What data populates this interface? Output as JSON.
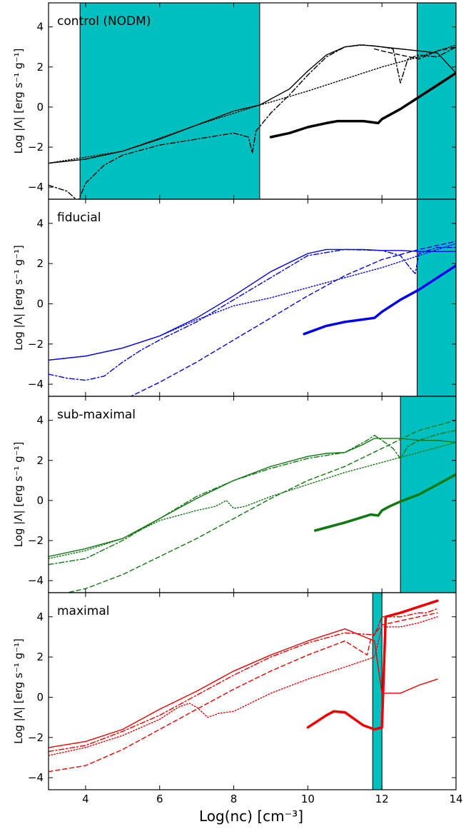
{
  "figure": {
    "xlabel": "Log(nᴄ) [cm⁻³]",
    "ylabel": "Log |Λ| [erg s⁻¹ g⁻¹]",
    "xticks": [
      "4",
      "6",
      "8",
      "10",
      "12",
      "14"
    ],
    "yticks": [
      "−4",
      "−2",
      "0",
      "2",
      "4"
    ]
  },
  "chart_data": [
    {
      "type": "line",
      "title": "control (NODM)",
      "color": "#000000",
      "xlim": [
        3,
        14
      ],
      "ylim": [
        -4.6,
        5.2
      ],
      "shaded_x_ranges": [
        [
          3.85,
          8.7
        ],
        [
          12.95,
          14
        ]
      ],
      "series": [
        {
          "style": "solid",
          "x": [
            3,
            4,
            5,
            6,
            7,
            8,
            8.7,
            9.5,
            10,
            10.5,
            11,
            11.4,
            11.8,
            12,
            12.5,
            13,
            13.5,
            14
          ],
          "y": [
            -2.8,
            -2.6,
            -2.2,
            -1.6,
            -0.9,
            -0.2,
            0.1,
            0.9,
            1.8,
            2.6,
            3.0,
            3.1,
            3.05,
            3.0,
            2.9,
            2.8,
            2.7,
            1.7
          ]
        },
        {
          "style": "dotted",
          "x": [
            3,
            5,
            7,
            8.7,
            9,
            10,
            11,
            12,
            13,
            14
          ],
          "y": [
            -2.8,
            -2.2,
            -0.9,
            0.1,
            0.25,
            0.8,
            1.4,
            2.0,
            2.5,
            3.1
          ]
        },
        {
          "style": "dashdot",
          "x": [
            3,
            3.5,
            3.8,
            4,
            4.5,
            5,
            6,
            7,
            8,
            8.4,
            8.5,
            8.6,
            9,
            9.5,
            10,
            10.5,
            11,
            11.5,
            12,
            12.3,
            12.5,
            12.7,
            13,
            13.5,
            14
          ],
          "y": [
            -3.9,
            -4.2,
            -4.7,
            -3.8,
            -2.9,
            -2.4,
            -1.9,
            -1.6,
            -1.3,
            -1.5,
            -2.3,
            -1.2,
            -0.3,
            0.6,
            1.6,
            2.5,
            3.0,
            3.1,
            3.0,
            2.9,
            1.2,
            2.4,
            2.6,
            2.5,
            3.0
          ]
        },
        {
          "style": "dashed",
          "x": [
            11.8,
            12,
            12.5,
            13,
            13.5,
            14
          ],
          "y": [
            2.9,
            2.8,
            2.6,
            2.4,
            2.8,
            3.0
          ]
        },
        {
          "style": "thick",
          "x": [
            9,
            9.5,
            10,
            10.5,
            10.8,
            11,
            11.5,
            11.9,
            12,
            12.5,
            13,
            13.5,
            14
          ],
          "y": [
            -1.5,
            -1.3,
            -1.0,
            -0.8,
            -0.7,
            -0.7,
            -0.7,
            -0.8,
            -0.6,
            -0.1,
            0.5,
            1.1,
            1.7
          ]
        }
      ]
    },
    {
      "type": "line",
      "title": "fiducial",
      "color": "#0000ee",
      "xlim": [
        3,
        14
      ],
      "ylim": [
        -4.6,
        5.2
      ],
      "shaded_x_ranges": [
        [
          12.95,
          14
        ]
      ],
      "series": [
        {
          "style": "solid",
          "x": [
            3,
            4,
            5,
            6,
            7,
            8,
            9,
            10,
            10.5,
            11,
            11.5,
            12,
            12.5,
            13,
            13.5,
            14
          ],
          "y": [
            -2.8,
            -2.6,
            -2.2,
            -1.6,
            -0.7,
            0.4,
            1.6,
            2.5,
            2.7,
            2.7,
            2.7,
            2.65,
            2.65,
            2.6,
            2.6,
            2.6
          ]
        },
        {
          "style": "dotted",
          "x": [
            3,
            4,
            5,
            6,
            7,
            8,
            9,
            10,
            11,
            12,
            13,
            14
          ],
          "y": [
            -2.8,
            -2.6,
            -2.2,
            -1.6,
            -0.8,
            -0.1,
            0.3,
            0.8,
            1.3,
            1.8,
            2.4,
            3.0
          ]
        },
        {
          "style": "dashdot",
          "x": [
            3,
            3.5,
            4,
            4.5,
            5,
            5.5,
            6,
            7,
            8,
            9,
            10,
            11,
            12,
            12.5,
            12.8,
            12.9,
            13,
            13.5,
            14
          ],
          "y": [
            -3.5,
            -3.7,
            -3.8,
            -3.6,
            -2.9,
            -2.3,
            -1.8,
            -0.9,
            0.2,
            1.3,
            2.4,
            2.7,
            2.65,
            2.4,
            1.7,
            1.5,
            2.5,
            2.8,
            2.8
          ]
        },
        {
          "style": "dashed",
          "x": [
            5,
            6,
            7,
            8,
            9,
            10,
            11,
            12,
            13,
            14
          ],
          "y": [
            -4.8,
            -3.9,
            -2.9,
            -1.8,
            -0.7,
            0.4,
            1.4,
            2.2,
            2.7,
            3.1
          ]
        },
        {
          "style": "thick",
          "x": [
            9.9,
            10.5,
            11,
            11.8,
            12,
            12.5,
            13,
            13.5,
            14
          ],
          "y": [
            -1.5,
            -1.1,
            -0.9,
            -0.7,
            -0.4,
            0.2,
            0.7,
            1.3,
            1.9
          ]
        }
      ]
    },
    {
      "type": "line",
      "title": "sub-maximal",
      "color": "#107810",
      "xlim": [
        3,
        14
      ],
      "ylim": [
        -4.6,
        5.2
      ],
      "shaded_x_ranges": [
        [
          12.5,
          14
        ]
      ],
      "series": [
        {
          "style": "solid",
          "x": [
            3,
            4,
            5,
            6,
            7,
            8,
            9,
            10,
            10.5,
            11,
            11.5,
            11.8,
            12,
            12.5,
            13,
            13.5,
            14
          ],
          "y": [
            -2.8,
            -2.4,
            -1.9,
            -0.9,
            0.1,
            1.0,
            1.7,
            2.2,
            2.35,
            2.4,
            2.8,
            3.1,
            3.1,
            3.1,
            3.0,
            3.0,
            2.9
          ]
        },
        {
          "style": "dotted",
          "x": [
            3,
            4,
            5,
            6,
            7,
            7.5,
            7.8,
            8,
            8.3,
            9,
            10,
            11,
            12,
            13,
            14
          ],
          "y": [
            -2.9,
            -2.5,
            -1.9,
            -1.0,
            -0.5,
            -0.3,
            0.0,
            -0.4,
            -0.3,
            0.2,
            0.8,
            1.4,
            1.9,
            2.4,
            2.9
          ]
        },
        {
          "style": "dashdot",
          "x": [
            3,
            4,
            5,
            6,
            7,
            8,
            9,
            10,
            11,
            11.6,
            11.8,
            12,
            12.3,
            12.5,
            12.7,
            13,
            13.5,
            14
          ],
          "y": [
            -3.2,
            -2.9,
            -2.0,
            -0.9,
            0.2,
            1.0,
            1.6,
            2.1,
            2.4,
            3.0,
            3.25,
            3.0,
            2.6,
            2.1,
            2.7,
            3.0,
            3.3,
            3.5
          ]
        },
        {
          "style": "dashed",
          "x": [
            3,
            4,
            5,
            6,
            7,
            8,
            9,
            10,
            11,
            12,
            13,
            14
          ],
          "y": [
            -4.8,
            -4.4,
            -3.7,
            -2.8,
            -1.9,
            -0.9,
            0.1,
            1.0,
            1.7,
            2.6,
            3.5,
            4.0
          ]
        },
        {
          "style": "thick",
          "x": [
            10.2,
            11,
            11.7,
            11.9,
            12,
            12.2,
            12.5,
            13,
            13.5,
            14
          ],
          "y": [
            -1.5,
            -1.1,
            -0.7,
            -0.75,
            -0.5,
            -0.3,
            -0.05,
            0.3,
            0.8,
            1.3
          ]
        }
      ]
    },
    {
      "type": "line",
      "title": "maximal",
      "color": "#ee0000",
      "xlim": [
        3,
        14
      ],
      "ylim": [
        -4.6,
        5.2
      ],
      "shaded_x_ranges": [
        [
          11.75,
          12
        ]
      ],
      "series": [
        {
          "style": "solid",
          "x": [
            3,
            4,
            5,
            6,
            7,
            8,
            9,
            10,
            11,
            11.8,
            12,
            12.1,
            12.5,
            13,
            13.5
          ],
          "y": [
            -2.5,
            -2.2,
            -1.6,
            -0.6,
            0.3,
            1.3,
            2.1,
            2.8,
            3.4,
            2.8,
            0.2,
            0.2,
            0.2,
            0.6,
            0.9
          ]
        },
        {
          "style": "dotted",
          "x": [
            3,
            4,
            5,
            6,
            6.5,
            6.8,
            7,
            7.3,
            7.6,
            8,
            9,
            10,
            11,
            11.8,
            12,
            12.5,
            13,
            13.5
          ],
          "y": [
            -2.9,
            -2.5,
            -1.9,
            -1.1,
            -0.5,
            -0.3,
            -0.5,
            -1.0,
            -0.8,
            -0.7,
            0.2,
            0.9,
            1.5,
            2.0,
            3.5,
            3.5,
            3.7,
            4.0
          ]
        },
        {
          "style": "dashdot",
          "x": [
            3,
            4,
            5,
            6,
            7,
            8,
            9,
            10,
            11,
            11.8,
            12,
            12.5,
            13,
            13.2,
            13.5
          ],
          "y": [
            -2.7,
            -2.4,
            -1.7,
            -0.9,
            0.1,
            1.1,
            2.0,
            2.7,
            3.2,
            3.1,
            4.0,
            4.0,
            4.2,
            4.2,
            4.4
          ]
        },
        {
          "style": "dashed",
          "x": [
            3,
            4,
            5,
            6,
            7,
            8,
            9,
            10,
            11,
            11.6,
            11.7,
            12,
            12.5,
            13,
            13.5
          ],
          "y": [
            -3.7,
            -3.4,
            -2.6,
            -1.6,
            -0.6,
            0.4,
            1.3,
            2.1,
            2.8,
            2.1,
            2.9,
            3.6,
            3.8,
            4.0,
            4.2
          ]
        },
        {
          "style": "thick",
          "x": [
            10,
            10.5,
            10.7,
            11,
            11.5,
            11.8,
            12,
            12.1,
            12.5,
            13,
            13.5
          ],
          "y": [
            -1.5,
            -0.9,
            -0.7,
            -0.75,
            -1.4,
            -1.6,
            -1.5,
            4.0,
            4.2,
            4.5,
            4.8
          ]
        }
      ]
    }
  ]
}
